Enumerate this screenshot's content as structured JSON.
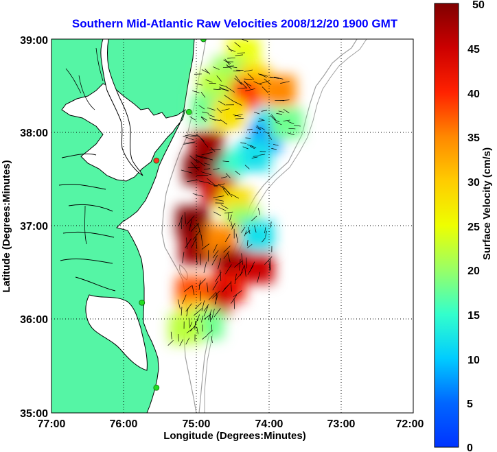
{
  "title": "Southern Mid-Atlantic Raw Velocities 2008/12/20 1900 GMT",
  "xlabel": "Longitude (Degrees:Minutes)",
  "ylabel": "Latitude (Degrees:Minutes)",
  "colorbar_label": "Surface Velocity (cm/s)",
  "x_ticks": [
    "77:00",
    "76:00",
    "75:00",
    "74:00",
    "73:00",
    "72:00"
  ],
  "y_ticks": [
    "39:00",
    "38:00",
    "37:00",
    "36:00",
    "35:00"
  ],
  "colorbar_ticks": [
    "50",
    "45",
    "40",
    "35",
    "30",
    "25",
    "20",
    "15",
    "10",
    "5",
    "0"
  ],
  "colors": {
    "land": "#55f5a5",
    "coast": "#000000",
    "bathymetry": "#a0a0a0",
    "grid": "#000000",
    "station": "#22dd22",
    "station_alt": "#ff3322"
  },
  "chart_data": {
    "type": "heatmap",
    "title": "Southern Mid-Atlantic Raw Velocities 2008/12/20 1900 GMT",
    "xlabel": "Longitude (Degrees:Minutes)",
    "ylabel": "Latitude (Degrees:Minutes)",
    "xlim": [
      -77.0,
      -72.0
    ],
    "ylim": [
      35.0,
      39.0
    ],
    "color_range": [
      0,
      50
    ],
    "grid": true,
    "colorbar_placement": "right",
    "stations": [
      {
        "lon": -74.9,
        "lat": 39.0,
        "color": "green"
      },
      {
        "lon": -75.1,
        "lat": 38.22,
        "color": "green"
      },
      {
        "lon": -75.55,
        "lat": 37.7,
        "color": "red"
      },
      {
        "lon": -75.75,
        "lat": 36.18,
        "color": "green"
      },
      {
        "lon": -75.55,
        "lat": 35.27,
        "color": "green"
      }
    ],
    "velocity_regions": [
      {
        "lon": -74.35,
        "lat": 38.85,
        "speed": 25
      },
      {
        "lon": -74.55,
        "lat": 38.65,
        "speed": 20
      },
      {
        "lon": -74.2,
        "lat": 38.55,
        "speed": 30
      },
      {
        "lon": -74.35,
        "lat": 38.4,
        "speed": 40
      },
      {
        "lon": -73.85,
        "lat": 38.45,
        "speed": 35
      },
      {
        "lon": -74.75,
        "lat": 38.5,
        "speed": 22
      },
      {
        "lon": -74.85,
        "lat": 38.25,
        "speed": 18
      },
      {
        "lon": -74.55,
        "lat": 38.2,
        "speed": 28
      },
      {
        "lon": -73.95,
        "lat": 38.1,
        "speed": 12
      },
      {
        "lon": -74.05,
        "lat": 37.95,
        "speed": 8
      },
      {
        "lon": -73.75,
        "lat": 38.1,
        "speed": 18
      },
      {
        "lon": -74.2,
        "lat": 37.75,
        "speed": 12
      },
      {
        "lon": -74.6,
        "lat": 37.65,
        "speed": 15
      },
      {
        "lon": -74.85,
        "lat": 37.85,
        "speed": 48
      },
      {
        "lon": -74.95,
        "lat": 37.6,
        "speed": 50
      },
      {
        "lon": -74.7,
        "lat": 37.4,
        "speed": 45
      },
      {
        "lon": -74.45,
        "lat": 37.25,
        "speed": 28
      },
      {
        "lon": -74.35,
        "lat": 37.05,
        "speed": 20
      },
      {
        "lon": -74.15,
        "lat": 36.9,
        "speed": 12
      },
      {
        "lon": -75.05,
        "lat": 37.05,
        "speed": 50
      },
      {
        "lon": -75.0,
        "lat": 36.75,
        "speed": 48
      },
      {
        "lon": -74.65,
        "lat": 36.85,
        "speed": 35
      },
      {
        "lon": -74.5,
        "lat": 36.6,
        "speed": 48
      },
      {
        "lon": -74.15,
        "lat": 36.55,
        "speed": 45
      },
      {
        "lon": -74.55,
        "lat": 36.35,
        "speed": 42
      },
      {
        "lon": -74.75,
        "lat": 36.2,
        "speed": 45
      },
      {
        "lon": -75.05,
        "lat": 36.3,
        "speed": 38
      },
      {
        "lon": -75.0,
        "lat": 36.05,
        "speed": 30
      },
      {
        "lon": -74.85,
        "lat": 35.95,
        "speed": 18
      },
      {
        "lon": -75.15,
        "lat": 35.9,
        "speed": 22
      }
    ]
  }
}
